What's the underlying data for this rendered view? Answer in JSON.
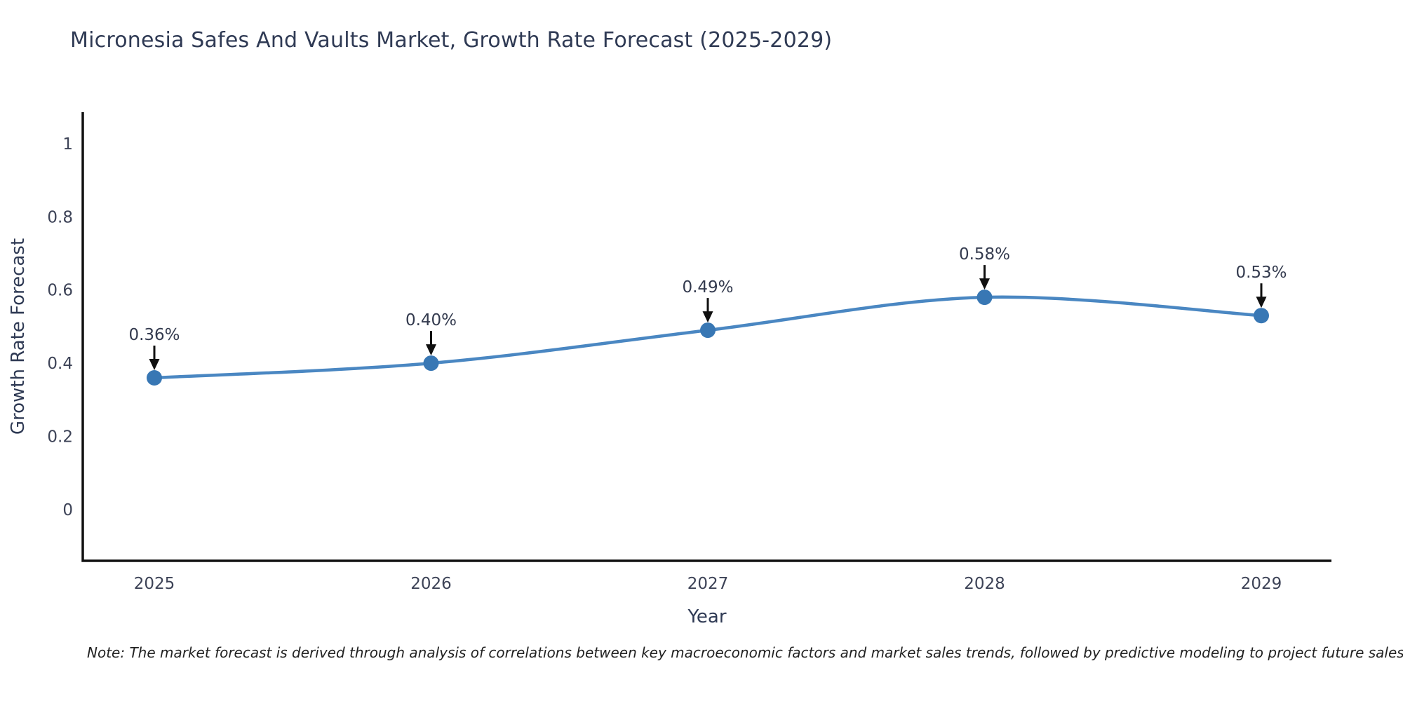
{
  "chart": {
    "note": "Note: The market forecast is derived through analysis of correlations between key macroeconomic factors and market sales trends, followed by predictive modeling to project future sales",
    "colors": {
      "line": "#4a87c2",
      "marker": "#3877b4",
      "axis": "#101010",
      "arrow": "#101010",
      "title_text": "#2f3a54",
      "tick_text": "#3d4357",
      "annotation_text": "#333a4e"
    }
  },
  "chart_data": {
    "type": "line",
    "title": "Micronesia Safes And Vaults Market, Growth Rate Forecast (2025-2029)",
    "xlabel": "Year",
    "ylabel": "Growth Rate Forecast",
    "categories": [
      "2025",
      "2026",
      "2027",
      "2028",
      "2029"
    ],
    "values": [
      0.36,
      0.4,
      0.49,
      0.58,
      0.53
    ],
    "point_labels": [
      "0.36%",
      "0.40%",
      "0.49%",
      "0.58%",
      "0.53%"
    ],
    "yticks": [
      0,
      0.2,
      0.4,
      0.6,
      0.8,
      1
    ],
    "ytick_labels": [
      "0",
      "0.2",
      "0.4",
      "0.6",
      "0.8",
      "1"
    ],
    "ylim": [
      -0.14,
      1.086
    ],
    "line_shape": "spline",
    "grid": false,
    "legend": "none",
    "annotation_style": "arrow-down-to-point"
  }
}
